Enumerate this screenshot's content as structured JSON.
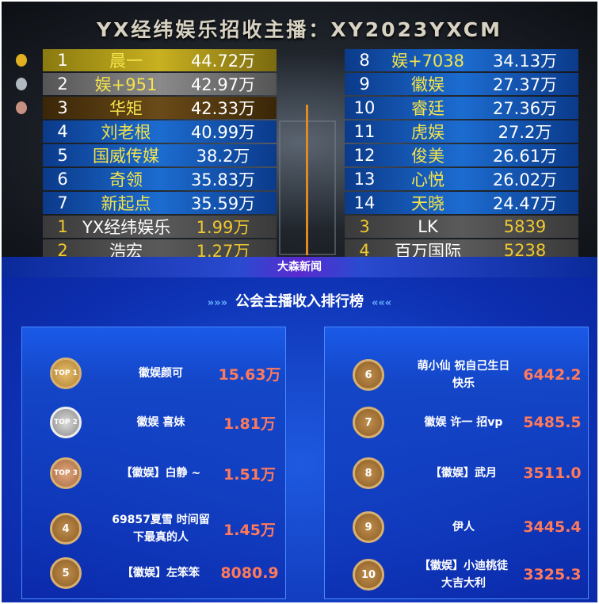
{
  "title": "YX经纬娱乐招收主播：XY2023YXCM",
  "left_board": [
    {
      "rank": "1",
      "name": "晨一",
      "value": "44.72万",
      "medal": "gold"
    },
    {
      "rank": "2",
      "name": "娱+951",
      "value": "42.97万",
      "medal": "silver"
    },
    {
      "rank": "3",
      "name": "华矩",
      "value": "42.33万",
      "medal": "bronze"
    },
    {
      "rank": "4",
      "name": "刘老根",
      "value": "40.99万"
    },
    {
      "rank": "5",
      "name": "国威传媒",
      "value": "38.2万"
    },
    {
      "rank": "6",
      "name": "奇领",
      "value": "35.83万"
    },
    {
      "rank": "7",
      "name": "新起点",
      "value": "35.59万"
    },
    {
      "rank": "1",
      "name": "YX经纬娱乐",
      "value": "1.99万",
      "style": "gray"
    },
    {
      "rank": "2",
      "name": "浩宏",
      "value": "1.27万",
      "style": "gray"
    }
  ],
  "right_board": [
    {
      "rank": "8",
      "name": "娱+7038",
      "value": "34.13万"
    },
    {
      "rank": "9",
      "name": "徽娱",
      "value": "27.37万"
    },
    {
      "rank": "10",
      "name": "睿廷",
      "value": "27.36万"
    },
    {
      "rank": "11",
      "name": "虎娱",
      "value": "27.2万"
    },
    {
      "rank": "12",
      "name": "俊美",
      "value": "26.61万"
    },
    {
      "rank": "13",
      "name": "心悦",
      "value": "26.02万"
    },
    {
      "rank": "14",
      "name": "天晓",
      "value": "24.47万"
    },
    {
      "rank": "3",
      "name": "LK",
      "value": "5839",
      "style": "gray"
    },
    {
      "rank": "4",
      "name": "百万国际",
      "value": "5238",
      "style": "gray"
    }
  ],
  "banner": "大森新闻",
  "subtitle": "公会主播收入排行榜",
  "guild_left": [
    {
      "badge": "TOP 1",
      "name": "徽娱颜可",
      "value": "15.63万",
      "tier": "t1"
    },
    {
      "badge": "TOP 2",
      "name": "徽娱 喜妹",
      "value": "1.81万",
      "tier": "t2"
    },
    {
      "badge": "TOP 3",
      "name": "【徽娱】白静 ~",
      "value": "1.51万",
      "tier": "t3"
    },
    {
      "badge": "4",
      "name": "69857夏雪 时间留下最真的人",
      "value": "1.45万"
    },
    {
      "badge": "5",
      "name": "【徽娱】左笨笨",
      "value": "8080.9"
    }
  ],
  "guild_right": [
    {
      "badge": "6",
      "name": "萌小仙 祝自己生日快乐",
      "value": "6442.2"
    },
    {
      "badge": "7",
      "name": "徽娱 许一 招vp",
      "value": "5485.5"
    },
    {
      "badge": "8",
      "name": "【徽娱】武月",
      "value": "3511.0"
    },
    {
      "badge": "9",
      "name": "伊人",
      "value": "3445.4"
    },
    {
      "badge": "10",
      "name": "【徽娱】小迪桃徒 大吉大利",
      "value": "3325.3"
    }
  ],
  "colors": {
    "gold": "#e0b020",
    "silver": "#b0b8c0",
    "bronze": "#c89080",
    "value_red": "#ff7a5a",
    "board_blue": "#1c6cd0"
  }
}
